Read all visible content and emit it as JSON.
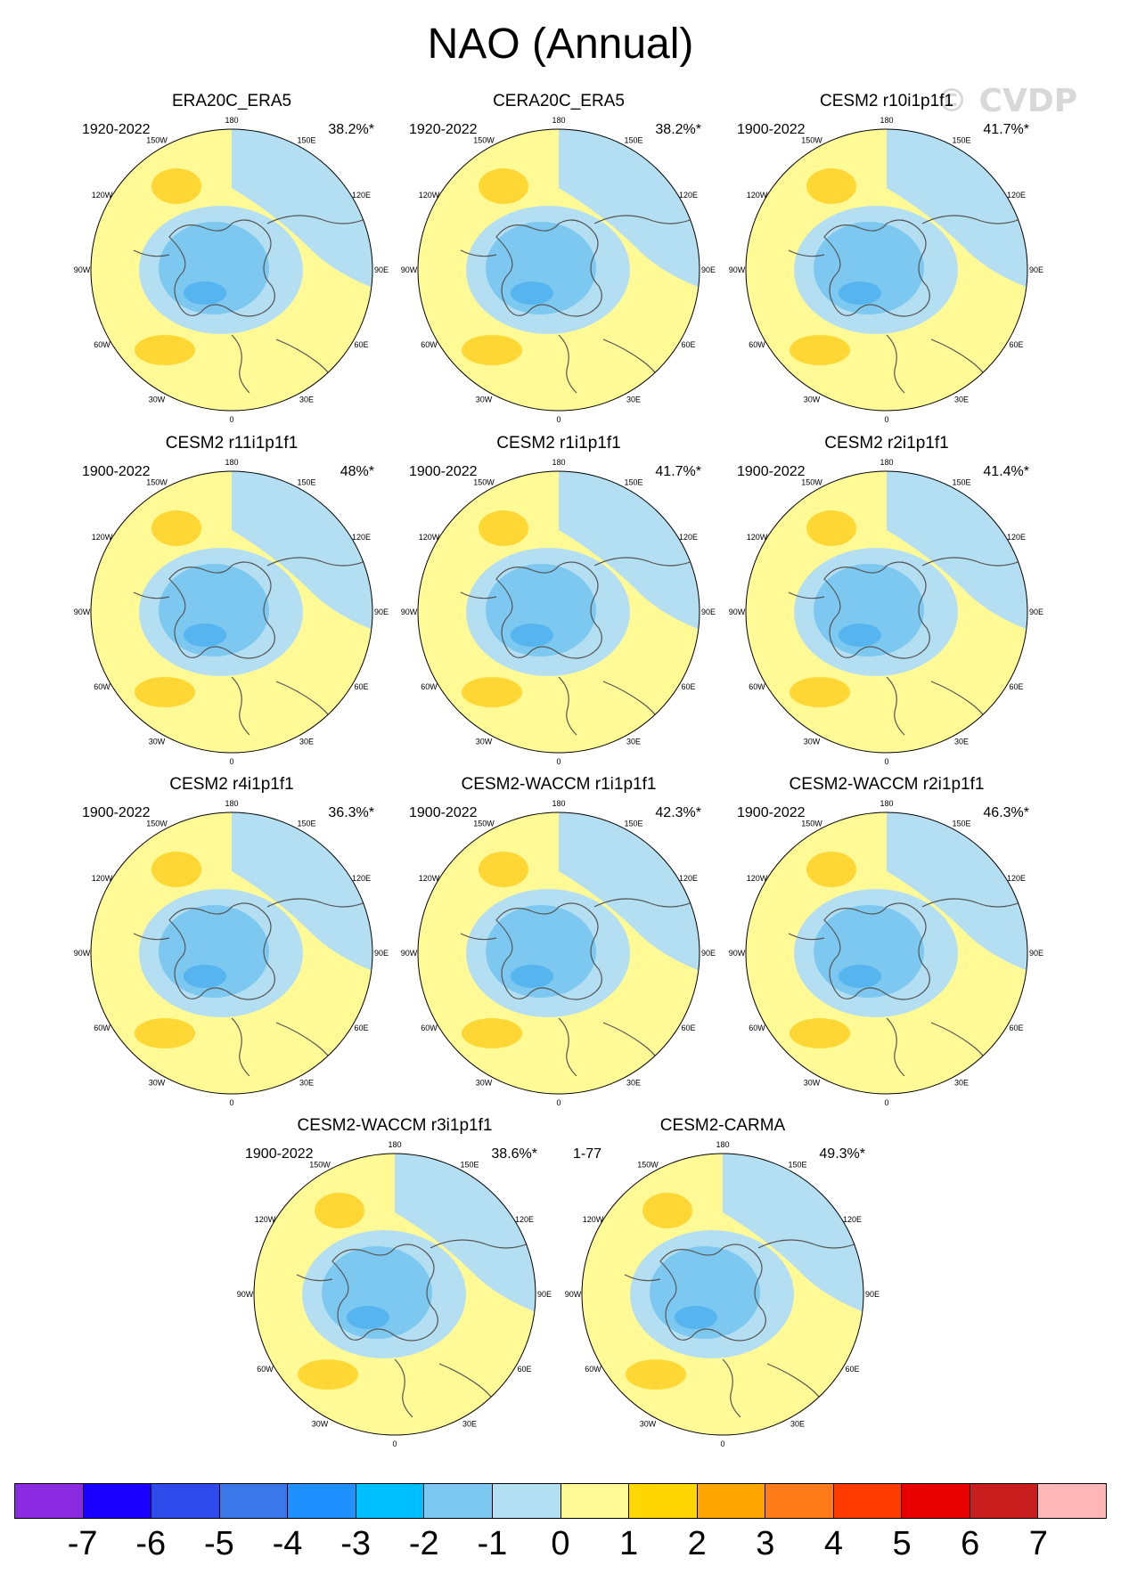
{
  "title": "NAO (Annual)",
  "watermark": "© CVDP",
  "longitude_labels": [
    "180",
    "150E",
    "120E",
    "90E",
    "60E",
    "30E",
    "0",
    "30W",
    "60W",
    "90W",
    "120W",
    "150W"
  ],
  "panels": [
    {
      "name": "ERA20C_ERA5",
      "period": "1920-2022",
      "percent": "38.2%*"
    },
    {
      "name": "CERA20C_ERA5",
      "period": "1920-2022",
      "percent": "38.2%*"
    },
    {
      "name": "CESM2 r10i1p1f1",
      "period": "1900-2022",
      "percent": "41.7%*"
    },
    {
      "name": "CESM2 r11i1p1f1",
      "period": "1900-2022",
      "percent": "48%*"
    },
    {
      "name": "CESM2 r1i1p1f1",
      "period": "1900-2022",
      "percent": "41.7%*"
    },
    {
      "name": "CESM2 r2i1p1f1",
      "period": "1900-2022",
      "percent": "41.4%*"
    },
    {
      "name": "CESM2 r4i1p1f1",
      "period": "1900-2022",
      "percent": "36.3%*"
    },
    {
      "name": "CESM2-WACCM r1i1p1f1",
      "period": "1900-2022",
      "percent": "42.3%*"
    },
    {
      "name": "CESM2-WACCM r2i1p1f1",
      "period": "1900-2022",
      "percent": "46.3%*"
    },
    {
      "name": "CESM2-WACCM r3i1p1f1",
      "period": "1900-2022",
      "percent": "38.6%*"
    },
    {
      "name": "CESM2-CARMA",
      "period": "1-77",
      "percent": "49.3%*"
    }
  ],
  "colorbar": {
    "colors": [
      "#8a2be2",
      "#1a00ff",
      "#2d4bea",
      "#3a78ea",
      "#1e90ff",
      "#00bfff",
      "#7cc8f0",
      "#b4dff2",
      "#fffa96",
      "#ffd700",
      "#ffa500",
      "#ff7b1a",
      "#ff3b00",
      "#e80000",
      "#c81e1e",
      "#ffb6b6"
    ],
    "labels": [
      "-7",
      "-6",
      "-5",
      "-4",
      "-3",
      "-2",
      "-1",
      "0",
      "1",
      "2",
      "3",
      "4",
      "5",
      "6",
      "7"
    ]
  },
  "palette": {
    "ocean": "#b4dff2",
    "neg1": "#7cc8f0",
    "neg2": "#56b4ee",
    "pos1": "#fffa96",
    "pos2": "#ffd734",
    "coast": "#555555"
  }
}
